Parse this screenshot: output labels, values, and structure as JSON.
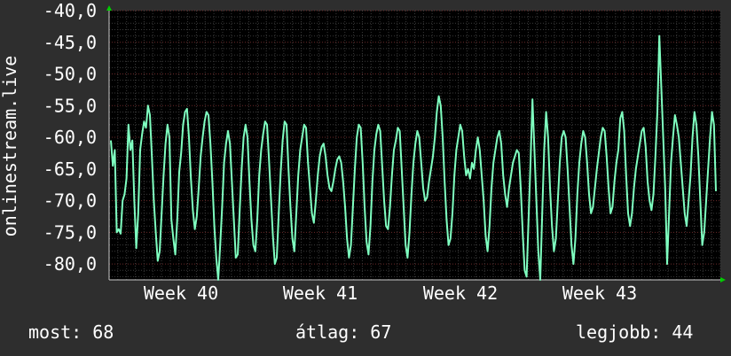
{
  "chart_data": {
    "type": "line",
    "title": "",
    "ylabel": "onlinestream.live",
    "xlabel": "",
    "ylim": [
      -82.5,
      -40
    ],
    "y_ticks": [
      "-40,0",
      "-45,0",
      "-50,0",
      "-55,0",
      "-60,0",
      "-65,0",
      "-70,0",
      "-75,0",
      "-80,0"
    ],
    "y_tick_values": [
      -40,
      -45,
      -50,
      -55,
      -60,
      -65,
      -70,
      -75,
      -80
    ],
    "x_ticks": [
      "Week 40",
      "Week 41",
      "Week 42",
      "Week 43"
    ],
    "grid": true,
    "series": [
      {
        "name": "",
        "color": "#7fffc0",
        "values": [
          -60.5,
          -64.5,
          -62.0,
          -75.0,
          -74.5,
          -75.2,
          -70.0,
          -69.0,
          -66.5,
          -58.0,
          -62.0,
          -60.5,
          -70.0,
          -77.5,
          -72.0,
          -62.0,
          -59.5,
          -57.5,
          -58.5,
          -55.0,
          -56.5,
          -63.0,
          -70.0,
          -75.0,
          -79.5,
          -78.0,
          -72.0,
          -66.0,
          -61.0,
          -58.0,
          -60.0,
          -73.0,
          -76.0,
          -78.5,
          -73.0,
          -65.5,
          -62.5,
          -58.0,
          -56.0,
          -55.5,
          -60.0,
          -66.5,
          -71.5,
          -74.5,
          -72.5,
          -68.0,
          -63.0,
          -60.0,
          -57.5,
          -56.0,
          -56.5,
          -61.0,
          -67.0,
          -74.0,
          -79.0,
          -82.5,
          -77.0,
          -71.0,
          -64.0,
          -61.0,
          -59.0,
          -61.0,
          -67.0,
          -73.0,
          -79.0,
          -78.5,
          -71.5,
          -65.0,
          -60.0,
          -58.0,
          -60.0,
          -67.0,
          -73.0,
          -77.0,
          -78.0,
          -73.0,
          -66.0,
          -62.0,
          -59.5,
          -57.5,
          -58.0,
          -63.5,
          -69.5,
          -75.5,
          -80.0,
          -79.0,
          -72.0,
          -65.5,
          -60.5,
          -57.5,
          -58.0,
          -65.0,
          -71.0,
          -76.0,
          -78.0,
          -72.0,
          -66.0,
          -62.0,
          -60.0,
          -58.0,
          -58.5,
          -64.0,
          -68.0,
          -72.0,
          -73.5,
          -70.0,
          -66.0,
          -63.0,
          -61.5,
          -61.0,
          -63.0,
          -66.0,
          -68.0,
          -68.5,
          -67.0,
          -65.0,
          -63.5,
          -63.0,
          -64.0,
          -67.0,
          -71.0,
          -76.0,
          -79.0,
          -77.0,
          -71.0,
          -65.0,
          -60.0,
          -58.0,
          -58.5,
          -64.0,
          -71.0,
          -76.5,
          -78.5,
          -74.0,
          -67.0,
          -62.0,
          -59.5,
          -58.0,
          -59.0,
          -64.5,
          -70.0,
          -74.0,
          -74.5,
          -71.0,
          -66.0,
          -62.0,
          -60.5,
          -58.5,
          -59.0,
          -65.0,
          -71.0,
          -77.0,
          -79.0,
          -75.0,
          -69.0,
          -64.0,
          -61.0,
          -59.0,
          -60.0,
          -64.0,
          -68.0,
          -70.0,
          -69.5,
          -67.0,
          -65.0,
          -63.0,
          -60.0,
          -56.0,
          -53.5,
          -55.0,
          -60.0,
          -67.0,
          -73.0,
          -77.0,
          -76.0,
          -72.0,
          -66.0,
          -62.0,
          -60.0,
          -58.0,
          -59.0,
          -63.0,
          -66.0,
          -65.0,
          -66.5,
          -64.0,
          -65.0,
          -62.0,
          -60.0,
          -62.0,
          -66.0,
          -70.0,
          -75.5,
          -78.0,
          -74.0,
          -68.0,
          -64.0,
          -62.0,
          -60.0,
          -59.0,
          -61.0,
          -66.0,
          -69.0,
          -71.0,
          -68.0,
          -66.0,
          -64.0,
          -63.0,
          -62.0,
          -62.5,
          -68.0,
          -75.0,
          -81.0,
          -82.0,
          -73.0,
          -64.0,
          -54.0,
          -62.0,
          -70.0,
          -78.0,
          -82.5,
          -72.0,
          -62.0,
          -56.0,
          -60.0,
          -68.0,
          -74.0,
          -78.0,
          -76.0,
          -70.0,
          -64.0,
          -60.0,
          -59.0,
          -60.0,
          -65.0,
          -71.0,
          -77.0,
          -80.0,
          -76.0,
          -69.0,
          -64.0,
          -61.0,
          -59.0,
          -60.0,
          -64.0,
          -69.0,
          -72.0,
          -71.0,
          -68.0,
          -65.0,
          -62.5,
          -60.0,
          -58.5,
          -59.0,
          -63.0,
          -68.0,
          -72.0,
          -71.0,
          -67.0,
          -64.0,
          -62.0,
          -57.0,
          -56.0,
          -59.0,
          -66.0,
          -72.0,
          -74.0,
          -72.0,
          -68.0,
          -65.0,
          -63.0,
          -61.0,
          -59.0,
          -58.5,
          -61.5,
          -67.0,
          -70.0,
          -71.5,
          -69.0,
          -63.0,
          -56.0,
          -44.0,
          -52.0,
          -60.0,
          -68.0,
          -80.0,
          -72.0,
          -64.0,
          -60.0,
          -56.5,
          -58.0,
          -60.0,
          -64.0,
          -68.0,
          -72.0,
          -74.0,
          -70.0,
          -66.0,
          -60.0,
          -56.0,
          -58.0,
          -63.0,
          -70.0,
          -77.0,
          -75.0,
          -70.0,
          -65.0,
          -60.0,
          -56.0,
          -58.0,
          -68.5
        ]
      }
    ]
  },
  "legend": {
    "current": "most: 68",
    "average": "átlag: 67",
    "best": "legjobb: 44"
  }
}
